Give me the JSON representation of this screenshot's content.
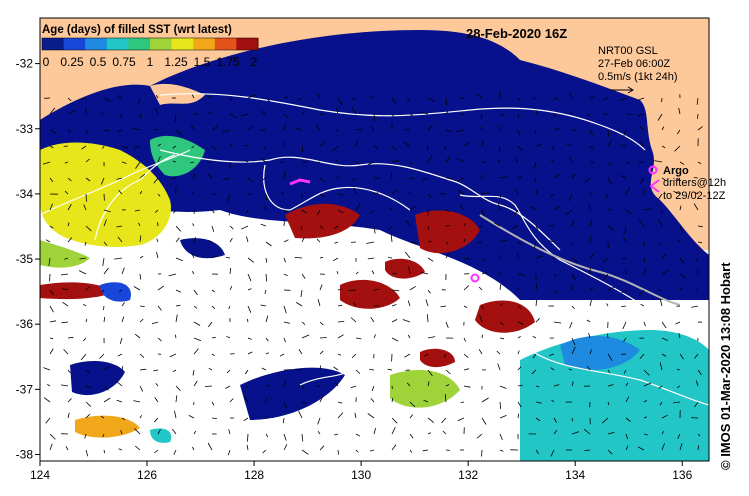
{
  "title": {
    "date": "28-Feb-2020 16Z"
  },
  "colorbar": {
    "label": "Age (days) of filled SST (wrt latest)",
    "ticks": [
      "0",
      "0.25",
      "0.5",
      "0.75",
      "1",
      "1.25",
      "1.5",
      "1.75",
      "2"
    ],
    "colors": [
      "#0a1d8a",
      "#1846d8",
      "#1e8ae0",
      "#22c6c6",
      "#2fc77d",
      "#9ed43a",
      "#e6e61a",
      "#f0a81a",
      "#e4531c",
      "#a40f0f"
    ]
  },
  "current_info": {
    "line1": "NRT00 GSL",
    "line2": "27-Feb 06:00Z",
    "line3": "0.5m/s (1kt 24h)"
  },
  "legend": {
    "argo_label": "Argo",
    "drifters_line1": "drifters@12h",
    "drifters_line2": "to 29/02-12Z",
    "argo_color": "#ff33ff"
  },
  "credit": "© IMOS 01-Mar-2020 13:08 Hobart",
  "axes": {
    "x_ticks": [
      "124",
      "126",
      "128",
      "130",
      "132",
      "134",
      "136"
    ],
    "y_ticks": [
      "-32",
      "-33",
      "-34",
      "-35",
      "-36",
      "-37",
      "-38"
    ],
    "xlim": [
      124,
      136.5
    ],
    "ylim": [
      -38.1,
      -31.3
    ]
  },
  "colors": {
    "land": "#fdc89a",
    "ocean_recent": "#08118c",
    "no_data": "#ffffff",
    "contour": "#ffffff"
  }
}
